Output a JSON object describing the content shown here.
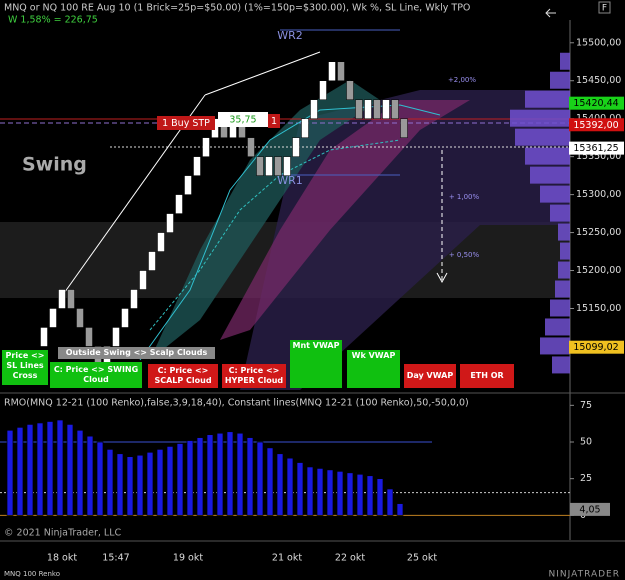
{
  "chart_data": [
    {
      "type": "renko",
      "title": "MNQ or NQ 100 RE Aug 10 (1 Brick=25p=$50.00) (1%=150p=$300.00), Wk %, SL Line, Wkly TPO",
      "subtitle": "W 1,58% = 226,75",
      "categories": [
        null,
        null,
        "18 okt",
        null,
        null,
        null,
        null,
        null,
        "15:47",
        null,
        null,
        null,
        null,
        null,
        null,
        null,
        "19 okt",
        null,
        null,
        null,
        null,
        null,
        null,
        null,
        null,
        null,
        null,
        "21 okt",
        null,
        null,
        null,
        null,
        null,
        null,
        "22 okt",
        null,
        null,
        null,
        null,
        null,
        null,
        null,
        "25 okt"
      ],
      "first_open": 15100,
      "values": [
        15125,
        15150,
        15175,
        15150,
        15125,
        15100,
        15075,
        15100,
        15125,
        15150,
        15175,
        15200,
        15225,
        15250,
        15275,
        15300,
        15325,
        15350,
        15375,
        15400,
        15375,
        15400,
        15375,
        15350,
        15325,
        15350,
        15325,
        15350,
        15375,
        15400,
        15425,
        15450,
        15475,
        15450,
        15425,
        15400,
        15425,
        15400,
        15425,
        15400,
        15375,
        null,
        null
      ],
      "up_color": "#ffffff",
      "down_color": "#9a9a9a",
      "ylim": [
        15040,
        15530
      ],
      "yticks": [
        {
          "value": 15100,
          "label": "15100,00"
        },
        {
          "value": 15150,
          "label": "15150,00"
        },
        {
          "value": 15200,
          "label": "15200,00"
        },
        {
          "value": 15250,
          "label": "15250,00"
        },
        {
          "value": 15300,
          "label": "15300,00"
        },
        {
          "value": 15350,
          "label": "15350,00"
        },
        {
          "value": 15400,
          "label": "15400,00"
        },
        {
          "value": 15450,
          "label": "15450,00"
        },
        {
          "value": 15500,
          "label": "15500,00"
        }
      ],
      "annotations": [
        "WR2",
        "WR1",
        "Swing",
        "+2,00%",
        "+ 1,00%",
        "+ 0,50%",
        "1 Buy STP",
        "35,75",
        "1"
      ],
      "price_markers": [
        {
          "value": 15420.44,
          "label": "15420,44",
          "color": "#19d219"
        },
        {
          "value": 15392,
          "label": "15392,00",
          "color": "#d01010"
        },
        {
          "value": 15361.25,
          "label": "15361,25",
          "color": "#ffffff"
        },
        {
          "value": 15099.02,
          "label": "15099,02",
          "color": "#f0c020"
        }
      ],
      "profile": {
        "levels": [
          15075,
          15100,
          15125,
          15150,
          15175,
          15200,
          15225,
          15250,
          15275,
          15300,
          15325,
          15350,
          15375,
          15400,
          15425,
          15450,
          15475
        ],
        "values": [
          18,
          30,
          25,
          20,
          15,
          12,
          10,
          12,
          20,
          30,
          40,
          45,
          55,
          60,
          45,
          20,
          10
        ],
        "xlim": [
          0,
          60
        ],
        "color": "#7050d0"
      }
    },
    {
      "type": "bar",
      "title": "RMO(MNQ 12-21 (100 Renko),false,3,9,18,40), Constant lines(MNQ 12-21 (100 Renko),50,-50,0,0)",
      "values": [
        58,
        60,
        62,
        63,
        64,
        65,
        62,
        58,
        54,
        50,
        45,
        42,
        40,
        41,
        43,
        45,
        47,
        49,
        51,
        53,
        55,
        56,
        57,
        56,
        53,
        50,
        46,
        42,
        39,
        36,
        33,
        32,
        31,
        30,
        29,
        28,
        27,
        25,
        18,
        8
      ],
      "color": "#1a1ae0",
      "ylim": [
        -10,
        80
      ],
      "yticks": [
        0,
        25,
        50,
        75
      ],
      "marker": {
        "value": 4.05,
        "label": "4,05"
      }
    }
  ],
  "overlay_buttons": [
    "Price <> SL Lines Cross",
    "Outside Swing <> Scalp Clouds",
    "C: Price <> SWING Cloud",
    "C: Price <> SCALP Cloud",
    "C: Price <> HYPER Cloud",
    "Mnt VWAP",
    "Wk VWAP",
    "Day VWAP",
    "ETH OR"
  ],
  "corner_button": "F",
  "footer": {
    "copyright": "© 2021 NinjaTrader, LLC",
    "instrument": "MNQ 100 Renko",
    "brand": "NINJATRADER"
  }
}
